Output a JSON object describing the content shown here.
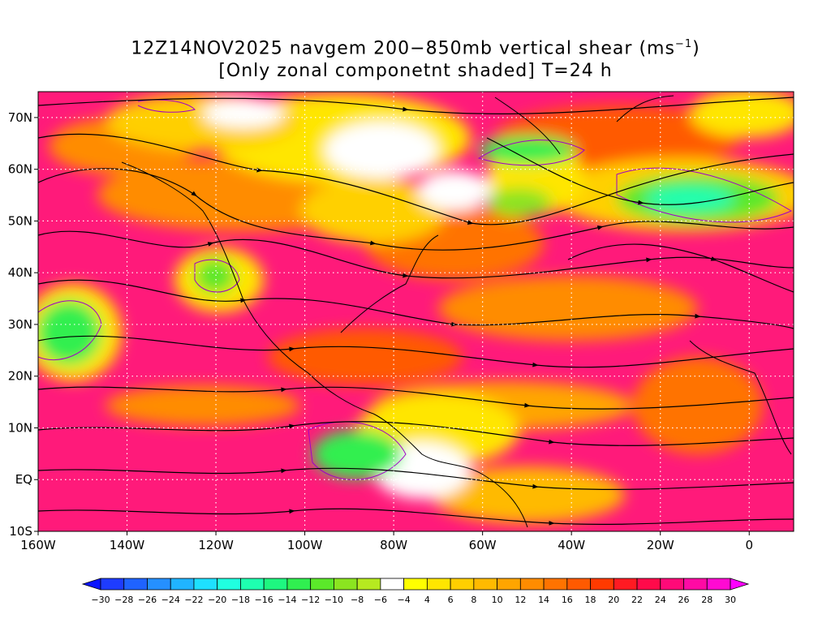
{
  "title": {
    "line1_main": "12Z14NOV2025 navgem 200−850mb vertical shear (ms",
    "line1_sup": "−1",
    "line1_end": ")",
    "line2": "[Only zonal componetnt shaded] T=24 h"
  },
  "map": {
    "projection": "latitude-longitude",
    "lon_range": [
      -160,
      10
    ],
    "lat_range": [
      -10,
      75
    ],
    "lat_ticks": [
      {
        "label": "70N",
        "value": 70
      },
      {
        "label": "60N",
        "value": 60
      },
      {
        "label": "50N",
        "value": 50
      },
      {
        "label": "40N",
        "value": 40
      },
      {
        "label": "30N",
        "value": 30
      },
      {
        "label": "20N",
        "value": 20
      },
      {
        "label": "10N",
        "value": 10
      },
      {
        "label": "EQ",
        "value": 0
      },
      {
        "label": "10S",
        "value": -10
      }
    ],
    "lon_ticks": [
      {
        "label": "160W",
        "value": -160
      },
      {
        "label": "140W",
        "value": -140
      },
      {
        "label": "120W",
        "value": -120
      },
      {
        "label": "100W",
        "value": -100
      },
      {
        "label": "80W",
        "value": -80
      },
      {
        "label": "60W",
        "value": -60
      },
      {
        "label": "40W",
        "value": -40
      },
      {
        "label": "20W",
        "value": -20
      },
      {
        "label": "0",
        "value": 0
      }
    ],
    "gridlines": "dotted white"
  },
  "colorbar": {
    "levels": [
      -30,
      -28,
      -26,
      -24,
      -22,
      -20,
      -18,
      -16,
      -14,
      -12,
      -10,
      -8,
      -6,
      -4,
      4,
      6,
      8,
      10,
      12,
      14,
      16,
      18,
      20,
      22,
      24,
      26,
      28,
      30
    ],
    "colors": [
      "#0a14ff",
      "#1e3cff",
      "#1f63ff",
      "#2590ff",
      "#20b4ff",
      "#1ee0ff",
      "#20ffe0",
      "#1effb0",
      "#1ef780",
      "#30ef50",
      "#5be82a",
      "#8be420",
      "#b6ea20",
      "#ffffff",
      "#ffff00",
      "#ffe600",
      "#ffcf00",
      "#ffba00",
      "#ffa500",
      "#ff8c00",
      "#ff7300",
      "#ff5a00",
      "#ff3a00",
      "#ff1a22",
      "#ff0a4a",
      "#ff0a78",
      "#ff0aa4",
      "#ff0ad2",
      "#ff00ff"
    ]
  }
}
